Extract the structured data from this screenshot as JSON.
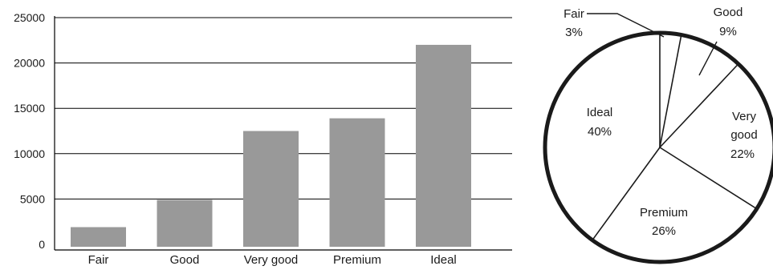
{
  "chart_data": [
    {
      "type": "bar",
      "title": "",
      "xlabel": "",
      "ylabel": "",
      "categories": [
        "Fair",
        "Good",
        "Very good",
        "Premium",
        "Ideal"
      ],
      "values": [
        1900,
        4900,
        12500,
        13900,
        22000
      ],
      "ylim": [
        0,
        25000
      ],
      "yticks": [
        0,
        5000,
        10000,
        15000,
        20000,
        25000
      ],
      "grid": true,
      "colors": {
        "bar": "#999999",
        "axis": "#000000",
        "grid": "#000000"
      }
    },
    {
      "type": "pie",
      "title": "",
      "slices": [
        {
          "label": "Fair",
          "value": 3,
          "text": "3%"
        },
        {
          "label": "Good",
          "value": 9,
          "text": "9%"
        },
        {
          "label": "Very good",
          "value": 22,
          "text": "22%"
        },
        {
          "label": "Premium",
          "value": 26,
          "text": "26%"
        },
        {
          "label": "Ideal",
          "value": 40,
          "text": "40%"
        }
      ],
      "colors": {
        "fill": "#ffffff",
        "stroke": "#1a1a1a"
      }
    }
  ]
}
